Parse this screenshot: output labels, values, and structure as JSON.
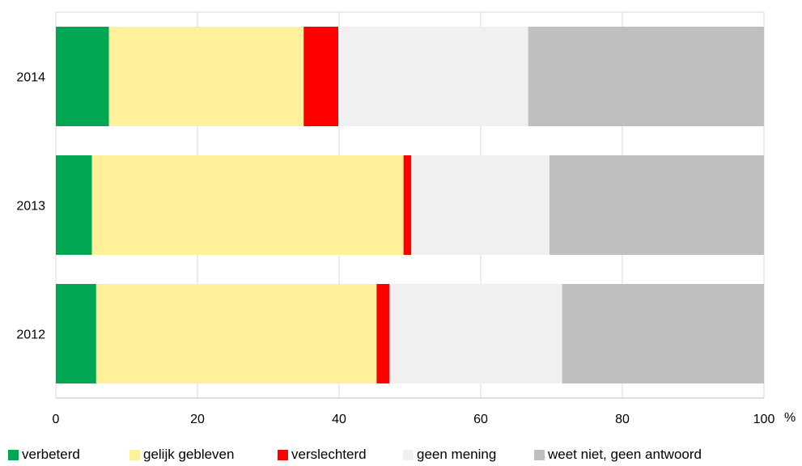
{
  "chart_data": {
    "type": "bar",
    "orientation": "horizontal",
    "stacked": true,
    "categories": [
      "2014",
      "2013",
      "2012"
    ],
    "series": [
      {
        "name": "verbeterd",
        "color": "#00a651",
        "values": [
          7.5,
          5.1,
          5.7
        ]
      },
      {
        "name": "gelijk gebleven",
        "color": "#fff19b",
        "values": [
          27.5,
          44.0,
          39.6
        ]
      },
      {
        "name": "verslechterd",
        "color": "#ff0000",
        "values": [
          4.9,
          1.1,
          1.8
        ]
      },
      {
        "name": "geen mening",
        "color": "#f0f0f0",
        "values": [
          26.8,
          19.5,
          24.4
        ]
      },
      {
        "name": "weet niet, geen antwoord",
        "color": "#bfbfbf",
        "values": [
          33.3,
          30.3,
          28.5
        ]
      }
    ],
    "xlim": [
      0,
      100
    ],
    "xticks": [
      0,
      20,
      40,
      60,
      80,
      100
    ],
    "xunit": "%",
    "grid": true,
    "legend_position": "bottom"
  }
}
